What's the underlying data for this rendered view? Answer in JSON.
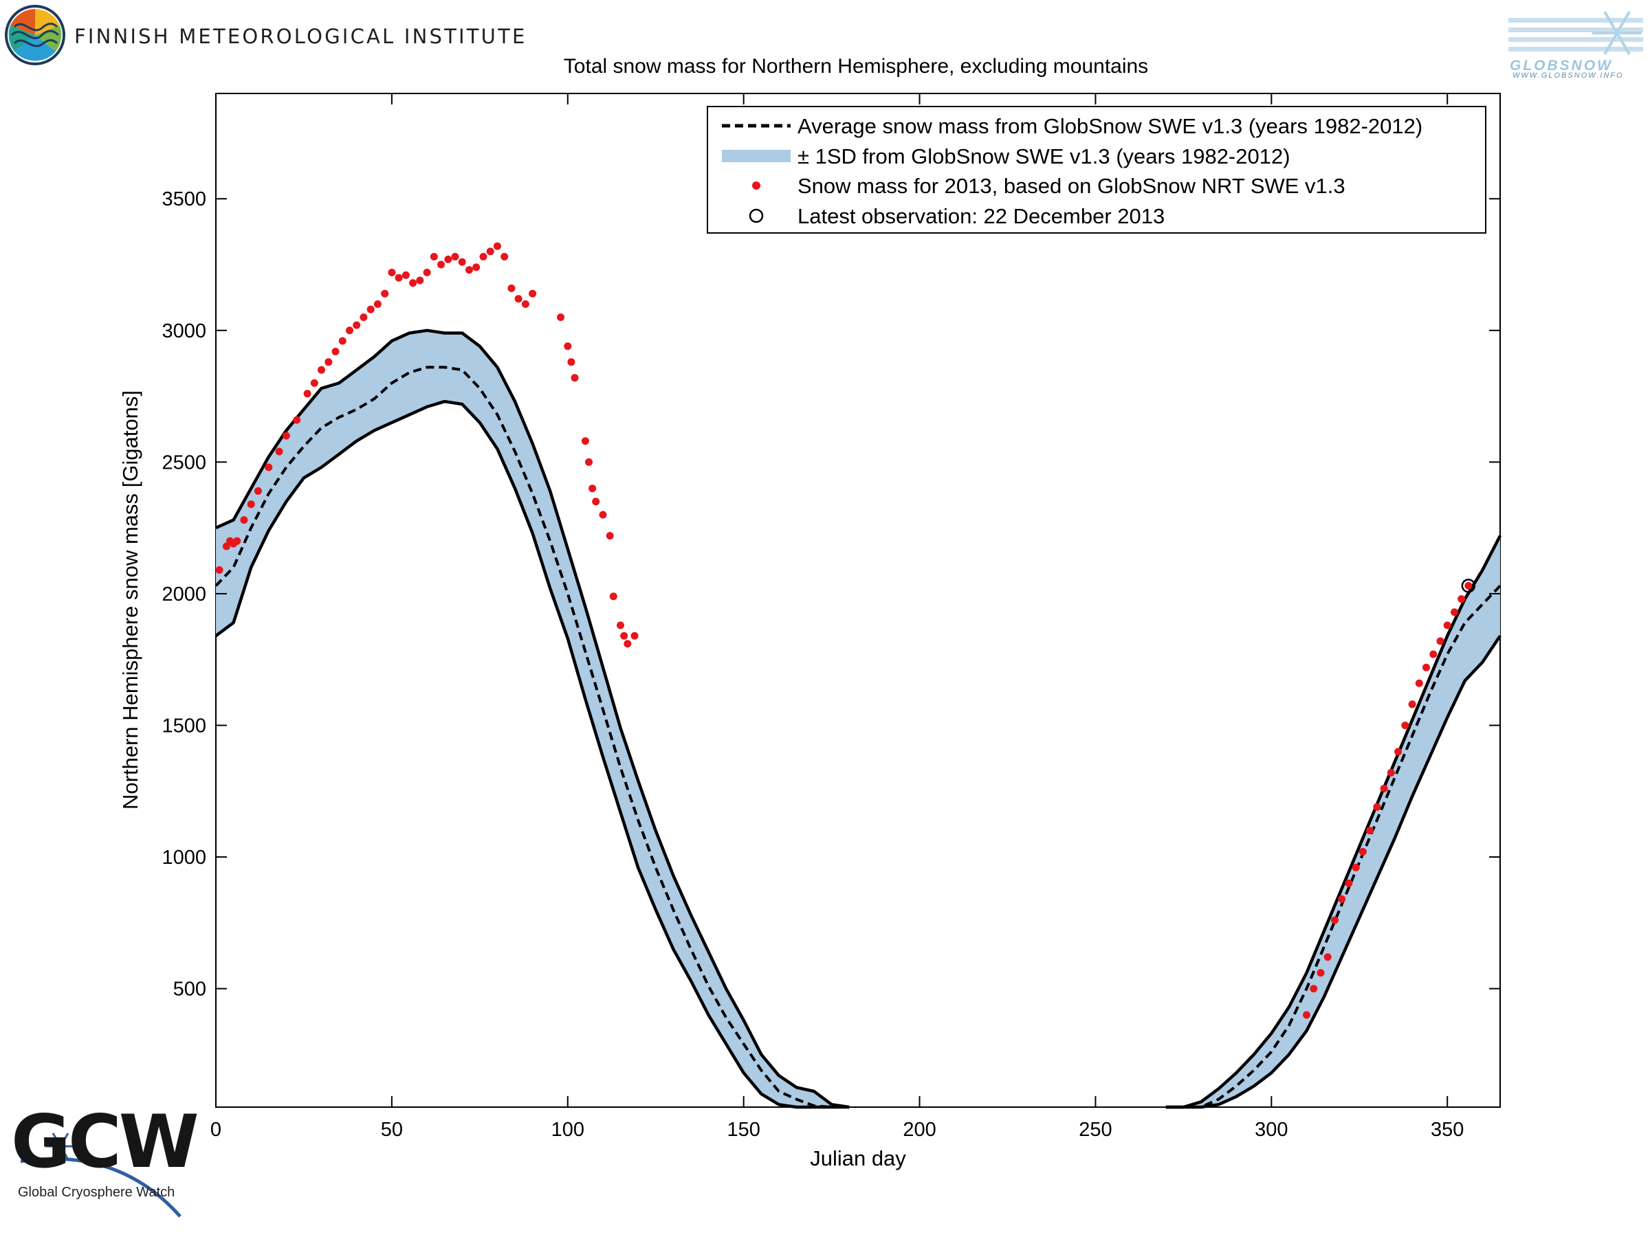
{
  "header": {
    "org_name": "FINNISH METEOROLOGICAL INSTITUTE",
    "globsnow_logo_text": "GLOBSNOW",
    "globsnow_url": "WWW.GLOBSNOW.INFO"
  },
  "footer": {
    "gcw_logo_text": "GCW",
    "gcw_subtitle": "Global Cryosphere Watch"
  },
  "colors": {
    "band": "#aecbe4",
    "observed": "#e8151b",
    "mean": "#000000"
  },
  "chart_data": {
    "type": "line",
    "title": "Total snow mass for Northern Hemisphere, excluding mountains",
    "xlabel": "Julian day",
    "ylabel": "Northern Hemisphere snow mass [Gigatons]",
    "xlim": [
      0,
      365
    ],
    "ylim": [
      50,
      3900
    ],
    "x_ticks": [
      0,
      50,
      100,
      150,
      200,
      250,
      300,
      350
    ],
    "y_ticks": [
      500,
      1000,
      1500,
      2000,
      2500,
      3000,
      3500
    ],
    "legend": {
      "placement": "top-right",
      "entries": [
        "Average snow mass from GlobSnow SWE v1.3 (years 1982-2012)",
        "± 1SD from GlobSnow SWE v1.3 (years 1982-2012)",
        "Snow mass for 2013, based on GlobSnow NRT SWE v1.3",
        "Latest observation: 22 December 2013"
      ]
    },
    "series": [
      {
        "name": "Average snow mass from GlobSnow SWE v1.3 (years 1982-2012)",
        "style": "dashed",
        "x": [
          0,
          5,
          10,
          15,
          20,
          25,
          30,
          35,
          40,
          45,
          50,
          55,
          60,
          65,
          70,
          75,
          80,
          85,
          90,
          95,
          100,
          105,
          110,
          115,
          120,
          125,
          130,
          135,
          140,
          145,
          150,
          155,
          160,
          165,
          170,
          175,
          180,
          270,
          275,
          280,
          285,
          290,
          295,
          300,
          305,
          310,
          315,
          320,
          325,
          330,
          335,
          340,
          345,
          350,
          355,
          360,
          365
        ],
        "y": [
          2030,
          2100,
          2250,
          2380,
          2480,
          2560,
          2630,
          2670,
          2700,
          2740,
          2800,
          2840,
          2860,
          2860,
          2850,
          2780,
          2680,
          2540,
          2380,
          2200,
          2000,
          1780,
          1560,
          1340,
          1140,
          960,
          800,
          650,
          510,
          390,
          290,
          190,
          110,
          80,
          55,
          50,
          50,
          40,
          45,
          50,
          80,
          130,
          190,
          260,
          360,
          500,
          660,
          820,
          980,
          1140,
          1300,
          1460,
          1620,
          1770,
          1890,
          1960,
          2030
        ]
      },
      {
        "name": "± 1SD upper",
        "x": [
          0,
          5,
          10,
          15,
          20,
          25,
          30,
          35,
          40,
          45,
          50,
          55,
          60,
          65,
          70,
          75,
          80,
          85,
          90,
          95,
          100,
          105,
          110,
          115,
          120,
          125,
          130,
          135,
          140,
          145,
          150,
          155,
          160,
          165,
          170,
          175,
          180,
          270,
          275,
          280,
          285,
          290,
          295,
          300,
          305,
          310,
          315,
          320,
          325,
          330,
          335,
          340,
          345,
          350,
          355,
          360,
          365
        ],
        "y": [
          2250,
          2280,
          2400,
          2520,
          2620,
          2700,
          2780,
          2800,
          2850,
          2900,
          2960,
          2990,
          3000,
          2990,
          2990,
          2940,
          2860,
          2730,
          2570,
          2390,
          2170,
          1950,
          1720,
          1490,
          1290,
          1100,
          930,
          780,
          640,
          500,
          380,
          250,
          170,
          125,
          110,
          60,
          50,
          40,
          50,
          70,
          120,
          180,
          250,
          330,
          430,
          560,
          720,
          880,
          1040,
          1200,
          1360,
          1520,
          1680,
          1840,
          1980,
          2090,
          2220
        ]
      },
      {
        "name": "± 1SD lower",
        "x": [
          0,
          5,
          10,
          15,
          20,
          25,
          30,
          35,
          40,
          45,
          50,
          55,
          60,
          65,
          70,
          75,
          80,
          85,
          90,
          95,
          100,
          105,
          110,
          115,
          120,
          125,
          130,
          135,
          140,
          145,
          150,
          155,
          160,
          165,
          170,
          175,
          180,
          270,
          275,
          280,
          285,
          290,
          295,
          300,
          305,
          310,
          315,
          320,
          325,
          330,
          335,
          340,
          345,
          350,
          355,
          360,
          365
        ],
        "y": [
          1840,
          1890,
          2100,
          2240,
          2350,
          2440,
          2480,
          2530,
          2580,
          2620,
          2650,
          2680,
          2710,
          2730,
          2720,
          2650,
          2550,
          2400,
          2230,
          2020,
          1830,
          1600,
          1380,
          1170,
          960,
          800,
          650,
          530,
          400,
          290,
          180,
          100,
          60,
          50,
          50,
          50,
          50,
          40,
          40,
          45,
          60,
          90,
          130,
          180,
          250,
          340,
          470,
          620,
          770,
          920,
          1070,
          1230,
          1380,
          1530,
          1670,
          1740,
          1840
        ]
      },
      {
        "name": "Snow mass for 2013, based on GlobSnow NRT SWE v1.3",
        "style": "markers",
        "x": [
          1,
          3,
          4,
          5,
          6,
          8,
          10,
          12,
          15,
          18,
          20,
          23,
          26,
          28,
          30,
          32,
          34,
          36,
          38,
          40,
          42,
          44,
          46,
          48,
          50,
          52,
          54,
          56,
          58,
          60,
          62,
          64,
          66,
          68,
          70,
          72,
          74,
          76,
          78,
          80,
          82,
          84,
          86,
          88,
          90,
          98,
          100,
          101,
          102,
          105,
          106,
          107,
          108,
          110,
          112,
          113,
          115,
          116,
          117,
          119,
          310,
          312,
          314,
          316,
          318,
          320,
          322,
          324,
          326,
          328,
          330,
          332,
          334,
          336,
          338,
          340,
          342,
          344,
          346,
          348,
          350,
          352,
          354,
          356
        ],
        "y": [
          2090,
          2180,
          2200,
          2190,
          2200,
          2280,
          2340,
          2390,
          2480,
          2540,
          2600,
          2660,
          2760,
          2800,
          2850,
          2880,
          2920,
          2960,
          3000,
          3020,
          3050,
          3080,
          3100,
          3140,
          3220,
          3200,
          3210,
          3180,
          3190,
          3220,
          3280,
          3250,
          3270,
          3280,
          3260,
          3230,
          3240,
          3280,
          3300,
          3320,
          3280,
          3160,
          3120,
          3100,
          3140,
          3050,
          2940,
          2880,
          2820,
          2580,
          2500,
          2400,
          2350,
          2300,
          2220,
          1990,
          1880,
          1840,
          1810,
          1840,
          400,
          500,
          560,
          620,
          760,
          840,
          900,
          960,
          1020,
          1100,
          1190,
          1260,
          1320,
          1400,
          1500,
          1580,
          1660,
          1720,
          1770,
          1820,
          1880,
          1930,
          1980,
          2030
        ]
      },
      {
        "name": "Latest observation: 22 December 2013",
        "style": "open-circle",
        "x": [
          356
        ],
        "y": [
          2030
        ]
      }
    ]
  }
}
